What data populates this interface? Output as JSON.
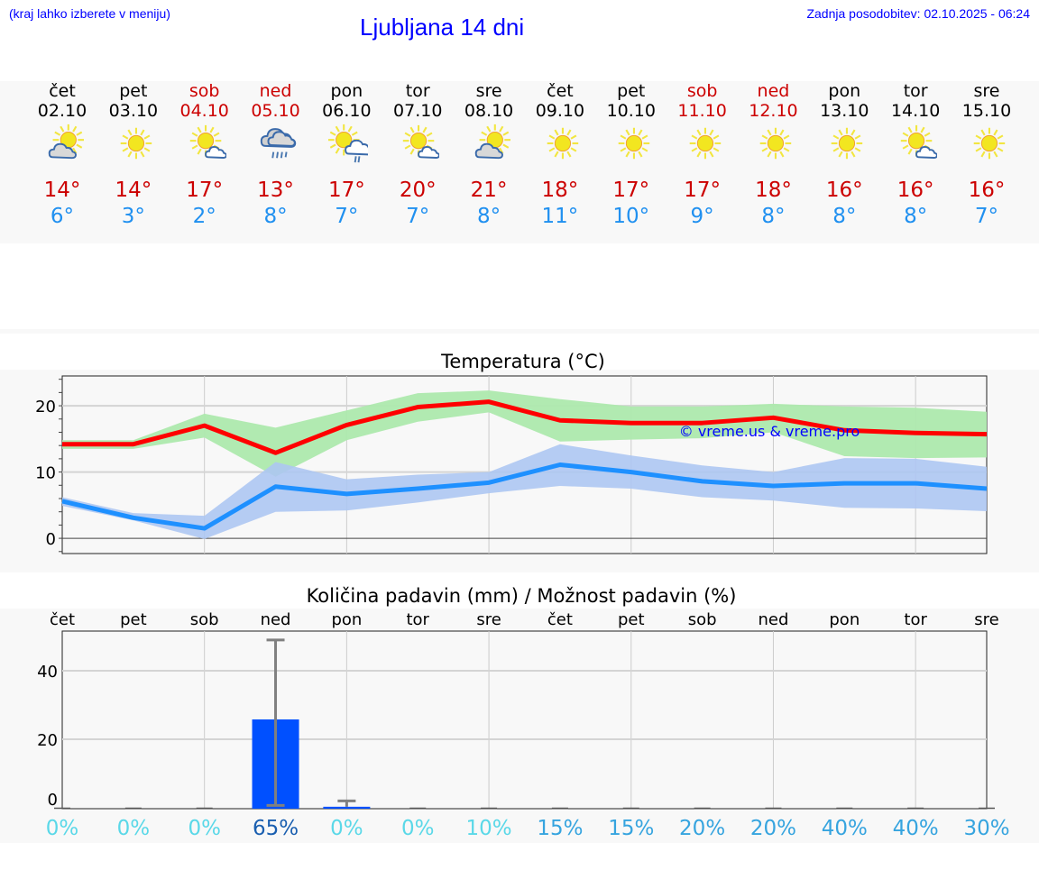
{
  "header": {
    "hint": "(kraj lahko izberete v meniju)",
    "title": "Ljubljana 14 dni",
    "updated": "Zadnja posodobitev: 02.10.2025 - 06:24"
  },
  "days": [
    {
      "name": "čet",
      "date": "02.10",
      "icon": "partly-cloudy",
      "hi": "14°",
      "lo": "6°",
      "weekend": false
    },
    {
      "name": "pet",
      "date": "03.10",
      "icon": "sunny",
      "hi": "14°",
      "lo": "3°",
      "weekend": false
    },
    {
      "name": "sob",
      "date": "04.10",
      "icon": "sun-small-cloud",
      "hi": "17°",
      "lo": "2°",
      "weekend": true
    },
    {
      "name": "ned",
      "date": "05.10",
      "icon": "rain-cloud",
      "hi": "13°",
      "lo": "8°",
      "weekend": true
    },
    {
      "name": "pon",
      "date": "06.10",
      "icon": "sun-shower",
      "hi": "17°",
      "lo": "7°",
      "weekend": false
    },
    {
      "name": "tor",
      "date": "07.10",
      "icon": "sun-small-cloud",
      "hi": "20°",
      "lo": "7°",
      "weekend": false
    },
    {
      "name": "sre",
      "date": "08.10",
      "icon": "partly-cloudy",
      "hi": "21°",
      "lo": "8°",
      "weekend": false
    },
    {
      "name": "čet",
      "date": "09.10",
      "icon": "sunny",
      "hi": "18°",
      "lo": "11°",
      "weekend": false
    },
    {
      "name": "pet",
      "date": "10.10",
      "icon": "sunny",
      "hi": "17°",
      "lo": "10°",
      "weekend": false
    },
    {
      "name": "sob",
      "date": "11.10",
      "icon": "sunny",
      "hi": "17°",
      "lo": "9°",
      "weekend": true
    },
    {
      "name": "ned",
      "date": "12.10",
      "icon": "sunny",
      "hi": "18°",
      "lo": "8°",
      "weekend": true
    },
    {
      "name": "pon",
      "date": "13.10",
      "icon": "sunny",
      "hi": "16°",
      "lo": "8°",
      "weekend": false
    },
    {
      "name": "tor",
      "date": "14.10",
      "icon": "sun-small-cloud",
      "hi": "16°",
      "lo": "8°",
      "weekend": false
    },
    {
      "name": "sre",
      "date": "15.10",
      "icon": "sunny",
      "hi": "16°",
      "lo": "7°",
      "weekend": false
    }
  ],
  "colors": {
    "max": "#ff0000",
    "max_band": "#ade9ad",
    "min": "#1e90ff",
    "min_band": "#adc6f2",
    "precip": "#0050ff",
    "error": "#808080",
    "watermark": "#0000ff"
  },
  "chart_data": [
    {
      "type": "line",
      "title": "Temperatura (°C)",
      "ylim": [
        -2.3,
        24.5
      ],
      "yticks": [
        0,
        10,
        20
      ],
      "grid": true,
      "watermark": "© vreme.us & vreme.pro",
      "x": [
        "02.10",
        "03.10",
        "04.10",
        "05.10",
        "06.10",
        "07.10",
        "08.10",
        "09.10",
        "10.10",
        "11.10",
        "12.10",
        "13.10",
        "14.10",
        "15.10"
      ],
      "series": [
        {
          "values": [
            14.2,
            14.2,
            17,
            12.9,
            17.1,
            19.8,
            20.6,
            17.8,
            17.4,
            17.4,
            18.2,
            16.3,
            15.9,
            15.7
          ],
          "band_low": [
            13.5,
            13.5,
            15.2,
            9.3,
            14.8,
            17.6,
            19,
            14.6,
            14.9,
            15.1,
            16,
            12.4,
            12.1,
            12.2
          ],
          "band_high": [
            14.8,
            14.8,
            18.8,
            16.7,
            19.3,
            21.9,
            22.3,
            21,
            19.9,
            19.9,
            20.3,
            19.9,
            19.7,
            19.1
          ]
        },
        {
          "values": [
            5.6,
            3.1,
            1.5,
            7.8,
            6.7,
            7.5,
            8.4,
            11.1,
            10,
            8.6,
            7.9,
            8.3,
            8.3,
            7.5
          ],
          "band_low": [
            4.9,
            2.7,
            -0.1,
            4,
            4.2,
            5.4,
            6.8,
            7.9,
            7.5,
            6.2,
            5.7,
            4.6,
            4.5,
            4.1
          ],
          "band_high": [
            6.2,
            3.8,
            3.4,
            11.5,
            8.9,
            9.6,
            10,
            14.2,
            12.5,
            11,
            10,
            12.1,
            12,
            10.8
          ]
        }
      ]
    },
    {
      "type": "bar",
      "title": "Količina padavin (mm) / Možnost padavin (%)",
      "ylim": [
        0,
        51.6
      ],
      "yticks": [
        0,
        20,
        40
      ],
      "grid": true,
      "categories": [
        "čet",
        "pet",
        "sob",
        "ned",
        "pon",
        "tor",
        "sre",
        "čet",
        "pet",
        "sob",
        "ned",
        "pon",
        "tor",
        "sre"
      ],
      "values": [
        0,
        0,
        0,
        25.8,
        0.3,
        0,
        0,
        0,
        0,
        0,
        0,
        0,
        0,
        0
      ],
      "error_low": [
        null,
        null,
        null,
        0.7,
        null,
        null,
        null,
        null,
        null,
        null,
        null,
        null,
        null,
        null
      ],
      "error_high": [
        null,
        null,
        null,
        49,
        2,
        null,
        null,
        null,
        null,
        null,
        null,
        null,
        null,
        null
      ],
      "probability": [
        "0%",
        "0%",
        "0%",
        "65%",
        "0%",
        "0%",
        "10%",
        "15%",
        "15%",
        "20%",
        "20%",
        "40%",
        "40%",
        "30%"
      ],
      "probability_colors": [
        "#5ad8e8",
        "#5ad8e8",
        "#5ad8e8",
        "#1a5fb0",
        "#5ad8e8",
        "#5ad8e8",
        "#5ad8e8",
        "#36a4df",
        "#36a4df",
        "#36a4df",
        "#36a4df",
        "#36a4df",
        "#36a4df",
        "#36a4df"
      ]
    }
  ]
}
